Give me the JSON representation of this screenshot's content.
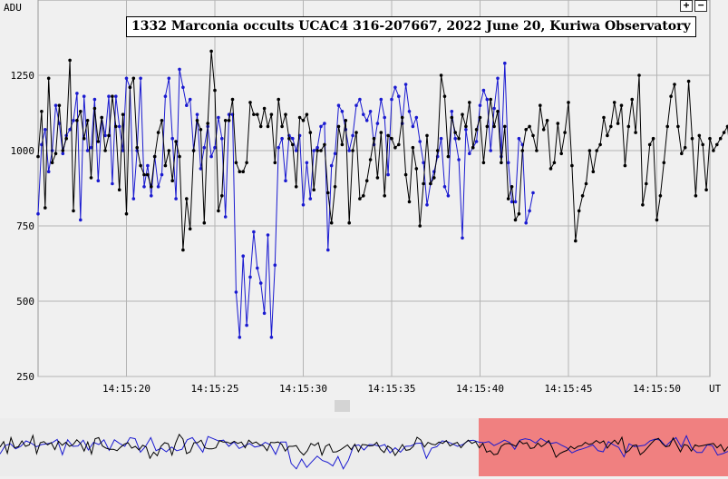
{
  "header": {
    "y_axis_label": "ADU",
    "x_axis_unit": "UT",
    "zoom_in_label": "+",
    "zoom_out_label": "−"
  },
  "chart_data": {
    "type": "line",
    "title": "1332 Marconia occults UCAC4 316-207667, 2022 June 20, Kuriwa Observatory",
    "xlabel": "UT",
    "ylabel": "ADU",
    "ylim": [
      250,
      1500
    ],
    "xlim": [
      "14:15:15.0",
      "14:15:53.0"
    ],
    "y_ticks": [
      250,
      500,
      750,
      1000,
      1250
    ],
    "x_ticks": [
      "14:15:20",
      "14:15:25",
      "14:15:30",
      "14:15:35",
      "14:15:40",
      "14:15:45",
      "14:15:50"
    ],
    "grid": true,
    "x_start": "14:15:15.0",
    "x_step_seconds": 0.2,
    "series": [
      {
        "color": "#1a1ad0",
        "values": [
          790,
          1020,
          1070,
          930,
          1000,
          1150,
          1090,
          990,
          1050,
          1070,
          1100,
          1190,
          770,
          1180,
          1000,
          1010,
          1170,
          900,
          1110,
          1050,
          1180,
          890,
          1180,
          1080,
          1000,
          1240,
          1210,
          840,
          1000,
          1240,
          880,
          950,
          850,
          980,
          880,
          920,
          1180,
          1240,
          1040,
          840,
          1270,
          1210,
          1150,
          1170,
          1000,
          1120,
          940,
          1010,
          1080,
          980,
          1010,
          1110,
          1040,
          780,
          1120,
          1120,
          530,
          380,
          650,
          420,
          580,
          730,
          610,
          560,
          460,
          720,
          380,
          620,
          1010,
          1040,
          900,
          1050,
          1040,
          1000,
          1050,
          820,
          960,
          840,
          1000,
          1010,
          1080,
          1090,
          670,
          950,
          990,
          1150,
          1130,
          1070,
          1000,
          1050,
          1150,
          1170,
          1120,
          1100,
          1130,
          1020,
          1090,
          1170,
          1110,
          920,
          1170,
          1210,
          1180,
          1090,
          1220,
          1130,
          1080,
          1110,
          1030,
          960,
          820,
          890,
          930,
          980,
          1040,
          880,
          850,
          1130,
          1040,
          970,
          710,
          1070,
          990,
          1010,
          1030,
          1150,
          1200,
          1170,
          1000,
          1140,
          1240,
          980,
          1290,
          960,
          830,
          830,
          1040,
          1020,
          760,
          800,
          860
        ],
        "name": ""
      },
      {
        "color": "#000000",
        "values": [
          980,
          1130,
          810,
          1240,
          960,
          990,
          1150,
          1000,
          1040,
          1300,
          800,
          1100,
          1130,
          1040,
          1100,
          910,
          1140,
          1030,
          1110,
          1000,
          1050,
          1180,
          1080,
          870,
          1120,
          790,
          1210,
          1240,
          1010,
          950,
          920,
          920,
          880,
          980,
          1060,
          1100,
          950,
          1000,
          900,
          1030,
          980,
          670,
          840,
          740,
          1000,
          1100,
          1070,
          760,
          1090,
          1330,
          1200,
          800,
          850,
          1100,
          1100,
          1170,
          960,
          930,
          930,
          960,
          1160,
          1120,
          1120,
          1080,
          1140,
          1080,
          1120,
          960,
          1170,
          1080,
          1120,
          1040,
          1020,
          880,
          1110,
          1100,
          1120,
          1060,
          870,
          1000,
          1000,
          1020,
          860,
          760,
          880,
          1080,
          1020,
          1100,
          760,
          1000,
          1060,
          840,
          850,
          900,
          970,
          1040,
          910,
          1060,
          850,
          1050,
          1040,
          1010,
          1020,
          1110,
          920,
          830,
          1010,
          940,
          750,
          890,
          1050,
          890,
          910,
          1000,
          1250,
          1180,
          980,
          1110,
          1060,
          1040,
          1120,
          1080,
          1160,
          1010,
          1070,
          1110,
          960,
          1080,
          1170,
          1080,
          1130,
          960,
          1080,
          840,
          880,
          770,
          790,
          1000,
          1070,
          1080,
          1050,
          1000,
          1150,
          1070,
          1100,
          940,
          960,
          1090,
          990,
          1060,
          1160,
          950,
          700,
          800,
          850,
          890,
          1000,
          930,
          1000,
          1020,
          1110,
          1050,
          1080,
          1160,
          1090,
          1150,
          950,
          1080,
          1170,
          1060,
          1250,
          820,
          890,
          1020,
          1040,
          770,
          850,
          960,
          1080,
          1180,
          1220,
          1080,
          990,
          1010,
          1230,
          1040,
          850,
          1050,
          1020,
          870,
          1040,
          1000,
          1020,
          1040,
          1060,
          1080,
          960,
          1050,
          860,
          990
        ],
        "name": ""
      }
    ]
  },
  "overview": {
    "window_start_seconds": 25,
    "window_end_seconds": 39
  }
}
